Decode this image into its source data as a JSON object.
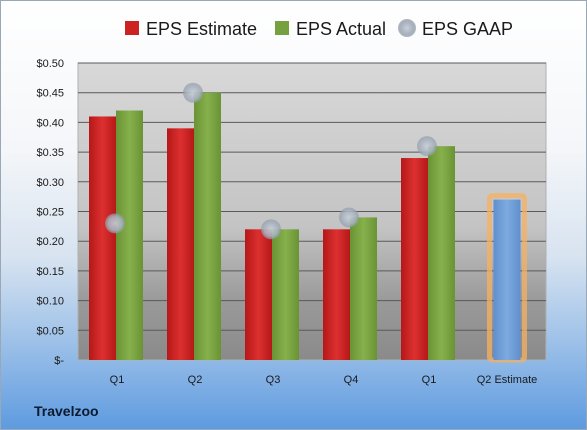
{
  "company": "Travelzoo",
  "chart_data": {
    "type": "bar",
    "categories": [
      "Q1",
      "Q2",
      "Q3",
      "Q4",
      "Q1",
      "Q2 Estimate"
    ],
    "series": [
      {
        "name": "EPS Estimate",
        "values": [
          0.41,
          0.39,
          0.22,
          0.22,
          0.34,
          null
        ]
      },
      {
        "name": "EPS Actual",
        "values": [
          0.42,
          0.45,
          0.22,
          0.24,
          0.36,
          null
        ]
      },
      {
        "name": "EPS GAAP",
        "type": "scatter",
        "values": [
          0.23,
          0.45,
          0.22,
          0.24,
          0.36,
          null
        ]
      }
    ],
    "estimate": {
      "category": "Q2 Estimate",
      "value": 0.27
    },
    "ylim": [
      0,
      0.5
    ],
    "y_ticks": [
      0,
      0.05,
      0.1,
      0.15,
      0.2,
      0.25,
      0.3,
      0.35,
      0.4,
      0.45,
      0.5
    ],
    "y_tick_labels": [
      "$-",
      "$0.05",
      "$0.10",
      "$0.15",
      "$0.20",
      "$0.25",
      "$0.30",
      "$0.35",
      "$0.40",
      "$0.45",
      "$0.50"
    ],
    "legend_position": "top",
    "grid": true,
    "colors": {
      "estimate": "#cc2222",
      "actual": "#77a040",
      "gaap": "#a9b3bf",
      "estimate_bar": "#6f9fd8",
      "estimate_glow": "#f5b060"
    }
  }
}
